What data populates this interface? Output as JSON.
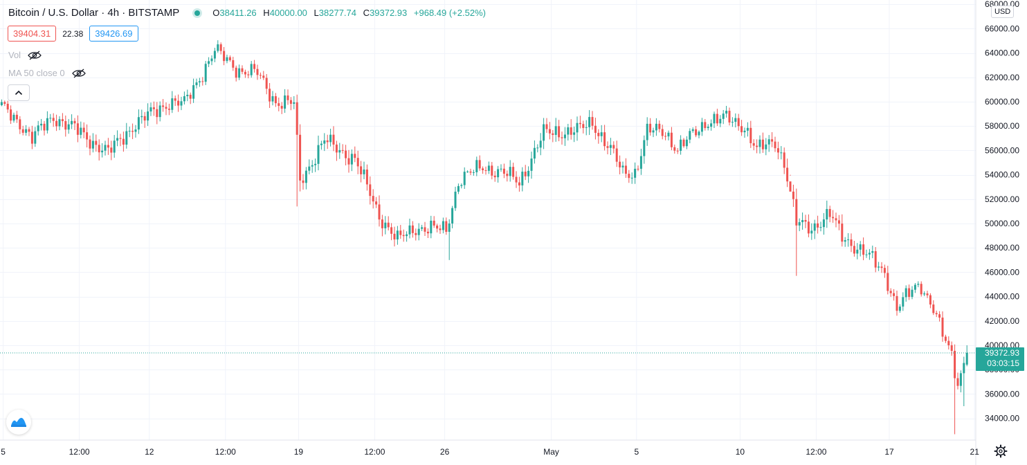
{
  "header": {
    "symbol_title": "Bitcoin / U.S. Dollar · 4h · BITSTAMP",
    "ohlc": {
      "o_label": "O",
      "o_value": "38411.26",
      "h_label": "H",
      "h_value": "40000.00",
      "l_label": "L",
      "l_value": "38277.74",
      "c_label": "C",
      "c_value": "39372.93",
      "change": "+968.49 (+2.52%)"
    }
  },
  "quotes": {
    "sell": "39404.31",
    "spread": "22.38",
    "buy": "39426.69"
  },
  "indicators": {
    "volume": "Vol",
    "ma": "MA 50 close 0"
  },
  "currency": "USD",
  "price_label": {
    "price": "39372.93",
    "countdown": "03:03:15"
  },
  "icons": {
    "visibility": "eye-off-icon",
    "collapse": "chevron-up-icon",
    "logo": "tradingview-logo-icon",
    "settings": "gear-icon"
  },
  "colors": {
    "up": "#26a69a",
    "down": "#ef5350",
    "grid": "#f0f3fa",
    "axis_text": "#131722"
  },
  "chart_data": {
    "type": "candlestick",
    "title": "Bitcoin / U.S. Dollar · 4h · BITSTAMP",
    "ylim": [
      32500,
      68000
    ],
    "y_ticks": [
      34000,
      36000,
      38000,
      40000,
      42000,
      44000,
      46000,
      48000,
      50000,
      52000,
      54000,
      56000,
      58000,
      60000,
      62000,
      64000,
      66000,
      68000
    ],
    "y_tick_labels": [
      "34000.00",
      "36000.00",
      "38000.00",
      "40000.00",
      "42000.00",
      "44000.00",
      "46000.00",
      "48000.00",
      "50000.00",
      "52000.00",
      "54000.00",
      "56000.00",
      "58000.00",
      "60000.00",
      "62000.00",
      "64000.00",
      "66000.00",
      "68000.00"
    ],
    "x_tick_labels": [
      "5",
      "12:00",
      "12",
      "12:00",
      "19",
      "12:00",
      "26",
      "May",
      "5",
      "10",
      "12:00",
      "17",
      "21"
    ],
    "x_tick_bar_index": [
      0.5,
      25.5,
      48.5,
      73.5,
      97.5,
      122.5,
      145.5,
      180.5,
      208.5,
      242.5,
      267.5,
      291.5,
      319.5
    ],
    "anchors": [
      [
        0,
        59500
      ],
      [
        6,
        58300
      ],
      [
        10,
        57000
      ],
      [
        17,
        58800
      ],
      [
        25,
        57600
      ],
      [
        35,
        55800
      ],
      [
        43,
        58000
      ],
      [
        55,
        60000
      ],
      [
        60,
        59800
      ],
      [
        70,
        64200
      ],
      [
        78,
        62600
      ],
      [
        84,
        62300
      ],
      [
        90,
        60000
      ],
      [
        96,
        59800
      ],
      [
        98,
        53500
      ],
      [
        106,
        56800
      ],
      [
        116,
        55300
      ],
      [
        124,
        50700
      ],
      [
        130,
        48600
      ],
      [
        136,
        49700
      ],
      [
        143,
        49500
      ],
      [
        146,
        49500
      ],
      [
        150,
        53500
      ],
      [
        158,
        54700
      ],
      [
        165,
        54100
      ],
      [
        170,
        53400
      ],
      [
        178,
        57400
      ],
      [
        190,
        57700
      ],
      [
        194,
        58300
      ],
      [
        200,
        56100
      ],
      [
        204,
        54100
      ],
      [
        208,
        54200
      ],
      [
        212,
        57600
      ],
      [
        218,
        57500
      ],
      [
        222,
        56100
      ],
      [
        228,
        57500
      ],
      [
        232,
        58500
      ],
      [
        238,
        58600
      ],
      [
        244,
        58000
      ],
      [
        248,
        56000
      ],
      [
        254,
        56800
      ],
      [
        257,
        55000
      ],
      [
        261,
        50000
      ],
      [
        266,
        49700
      ],
      [
        272,
        50700
      ],
      [
        276,
        49000
      ],
      [
        282,
        47800
      ],
      [
        286,
        47000
      ],
      [
        290,
        46000
      ],
      [
        294,
        43000
      ],
      [
        300,
        44800
      ],
      [
        302,
        45000
      ],
      [
        306,
        43000
      ],
      [
        309,
        40800
      ],
      [
        312,
        39200
      ],
      [
        314,
        36900
      ],
      [
        317,
        39373
      ]
    ],
    "last_close": 39373,
    "last_candle": {
      "open": 38411.26,
      "high": 40000.0,
      "low": 38277.74,
      "close": 39372.93
    }
  }
}
